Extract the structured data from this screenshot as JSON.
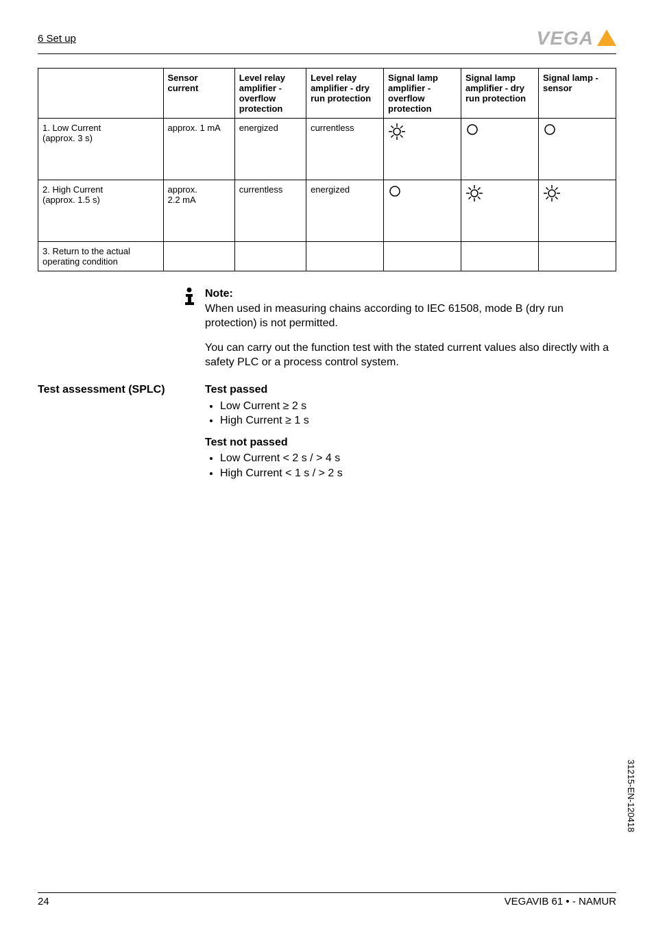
{
  "header": {
    "section": "6  Set up"
  },
  "logo": {
    "text": "VEGA"
  },
  "table": {
    "headers": [
      "",
      "Sensor current",
      "Level relay amplifier - overflow protection",
      "Level relay amplifier - dry run protection",
      "Signal lamp amplifier - overflow protection",
      "Signal lamp amplifier - dry run protection",
      "Signal lamp - sensor"
    ],
    "rows": [
      {
        "label": "1. Low Current\n(approx. 3 s)",
        "sensor": "approx. 1 mA",
        "relay_overflow": "energized",
        "relay_dry": "currentless",
        "lamp_overflow_icon": "sun",
        "lamp_dry_icon": "circle",
        "lamp_sensor_icon": "circle"
      },
      {
        "label": "2. High Current\n(approx. 1.5 s)",
        "sensor": "approx. 2.2 mA",
        "relay_overflow": "currentless",
        "relay_dry": "energized",
        "lamp_overflow_icon": "circle",
        "lamp_dry_icon": "sun",
        "lamp_sensor_icon": "sun"
      },
      {
        "label": "3. Return to the actual operating condition",
        "sensor": "",
        "relay_overflow": "",
        "relay_dry": "",
        "lamp_overflow_icon": "",
        "lamp_dry_icon": "",
        "lamp_sensor_icon": ""
      }
    ]
  },
  "note": {
    "title": "Note:",
    "body": "When used in measuring chains according to IEC 61508, mode B (dry run protection) is not permitted."
  },
  "para1": "You can carry out the function test with the stated current values also directly with a safety PLC or a process control system.",
  "assessment": {
    "label": "Test assessment (SPLC)",
    "passed_title": "Test passed",
    "passed_items": [
      "Low Current ≥ 2 s",
      "High Current ≥ 1 s"
    ],
    "not_passed_title": "Test not passed",
    "not_passed_items": [
      "Low Current < 2 s / > 4 s",
      "High Current < 1 s / > 2 s"
    ]
  },
  "side_code": "31215-EN-120418",
  "footer": {
    "page": "24",
    "product": "VEGAVIB 61 • - NAMUR"
  },
  "icons": {
    "sun": "☼",
    "circle": "○",
    "info": "ℹ"
  },
  "colors": {
    "text": "#000000",
    "logo_gray": "#b0b0b0",
    "logo_orange": "#f5a623",
    "background": "#ffffff"
  }
}
